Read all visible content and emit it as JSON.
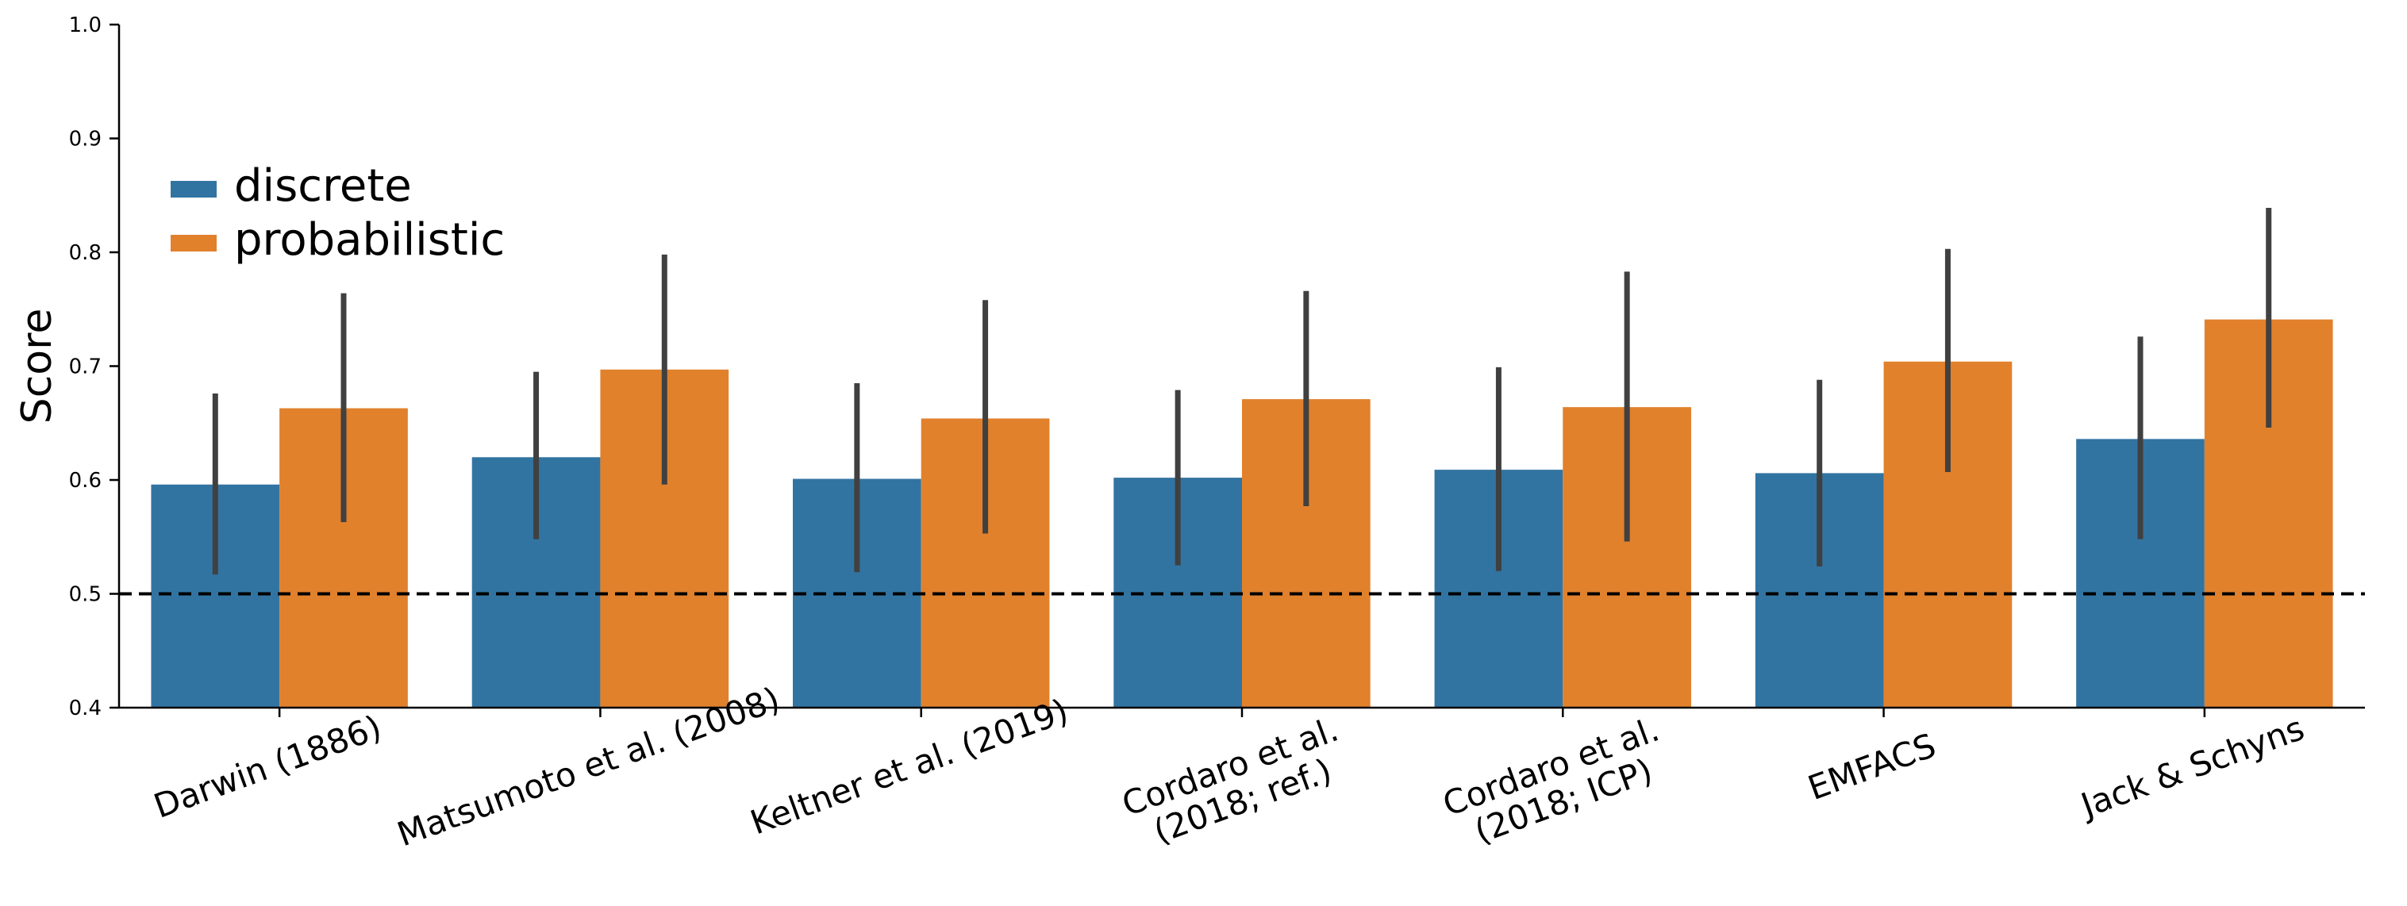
{
  "chart_data": {
    "type": "bar",
    "title": "",
    "xlabel": "",
    "ylabel": "Score",
    "ylim": [
      0.4,
      1.0
    ],
    "yticks": [
      "0.4",
      "0.5",
      "0.6",
      "0.7",
      "0.8",
      "0.9",
      "1.0"
    ],
    "categories": [
      [
        "Darwin (1886)"
      ],
      [
        "Matsumoto et al. (2008)"
      ],
      [
        "Keltner et al. (2019)"
      ],
      [
        "Cordaro et al.",
        "(2018; ref.)"
      ],
      [
        "Cordaro et al.",
        "(2018; ICP)"
      ],
      [
        "EMFACS"
      ],
      [
        "Jack & Schyns"
      ]
    ],
    "series": [
      {
        "name": "discrete",
        "color": "#3274a1",
        "values": [
          0.596,
          0.62,
          0.601,
          0.602,
          0.609,
          0.606,
          0.636
        ],
        "err_low": [
          0.517,
          0.548,
          0.519,
          0.525,
          0.52,
          0.524,
          0.548
        ],
        "err_high": [
          0.676,
          0.695,
          0.685,
          0.679,
          0.699,
          0.688,
          0.726
        ]
      },
      {
        "name": "probabilistic",
        "color": "#e1812c",
        "values": [
          0.663,
          0.697,
          0.654,
          0.671,
          0.664,
          0.704,
          0.741
        ],
        "err_low": [
          0.563,
          0.596,
          0.553,
          0.577,
          0.546,
          0.607,
          0.646
        ],
        "err_high": [
          0.764,
          0.798,
          0.758,
          0.766,
          0.783,
          0.803,
          0.839
        ]
      }
    ],
    "reference_line": {
      "y": 0.5,
      "style": "dashed"
    },
    "legend": {
      "placement": "upper-left"
    },
    "grid": false
  }
}
